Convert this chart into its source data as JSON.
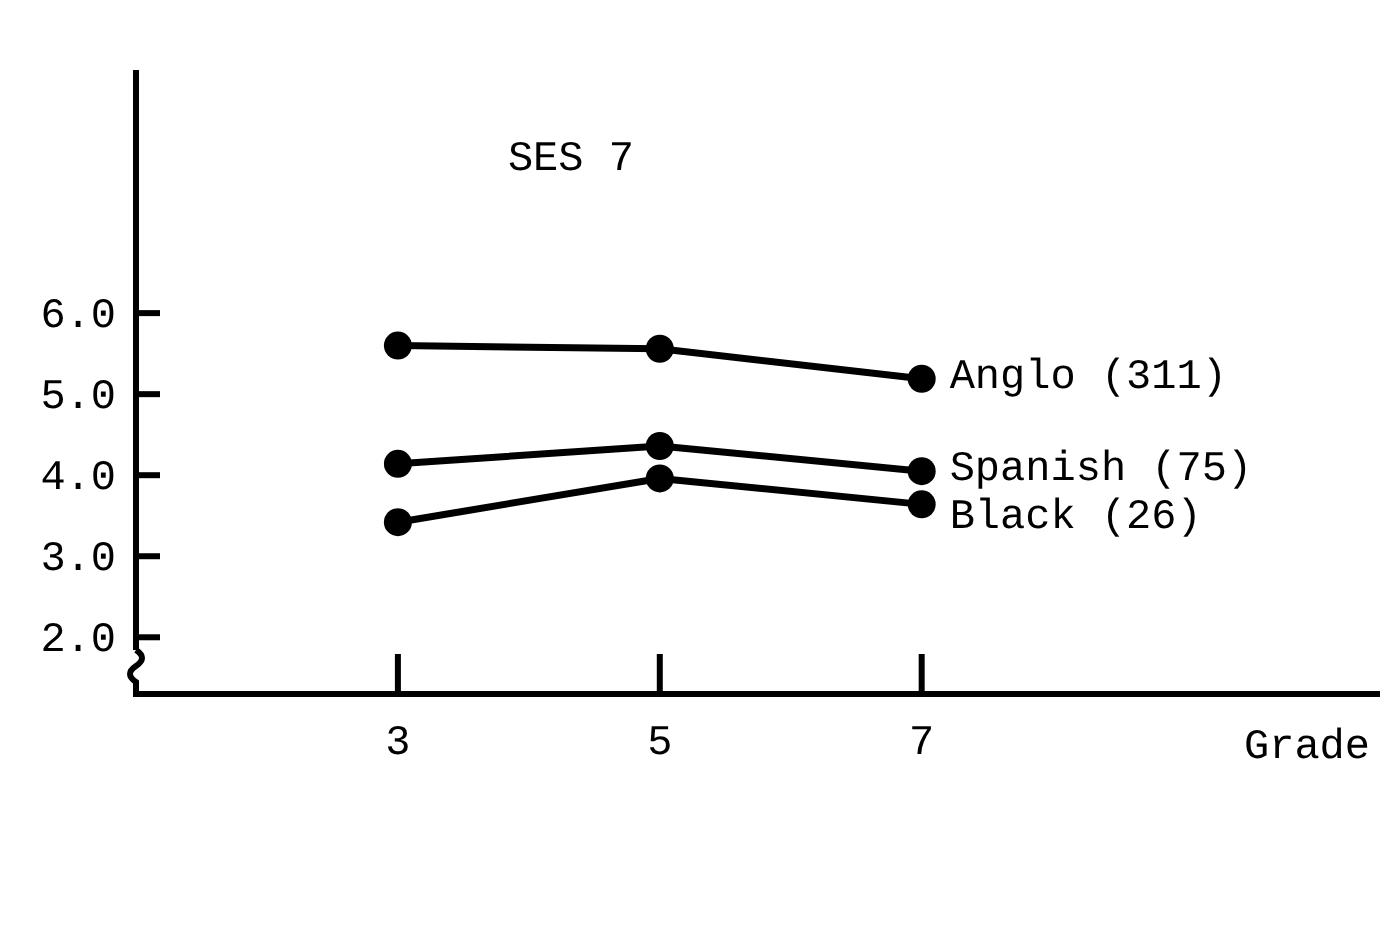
{
  "chart_data": {
    "type": "line",
    "title": "SES 7",
    "xlabel": "Grade",
    "x": [
      3,
      5,
      7
    ],
    "series": [
      {
        "name": "Anglo (311)",
        "color": "#000000",
        "values": [
          5.6,
          5.56,
          5.19
        ]
      },
      {
        "name": "Spanish (75)",
        "color": "#000000",
        "values": [
          4.14,
          4.36,
          4.05
        ]
      },
      {
        "name": "Black (26)",
        "color": "#000000",
        "values": [
          3.42,
          3.96,
          3.64
        ]
      }
    ],
    "xlim": [
      1,
      10.5
    ],
    "xticks": [
      3,
      5,
      7
    ],
    "ylim": [
      1.3,
      9
    ],
    "yticks": [
      {
        "value": 2,
        "label": "2.0"
      },
      {
        "value": 3,
        "label": "3.0"
      },
      {
        "value": 4,
        "label": "4.0"
      },
      {
        "value": 5,
        "label": "5.0"
      },
      {
        "value": 6,
        "label": "6.0"
      }
    ],
    "grid": false,
    "marker": "circle",
    "line_style": "solid"
  }
}
